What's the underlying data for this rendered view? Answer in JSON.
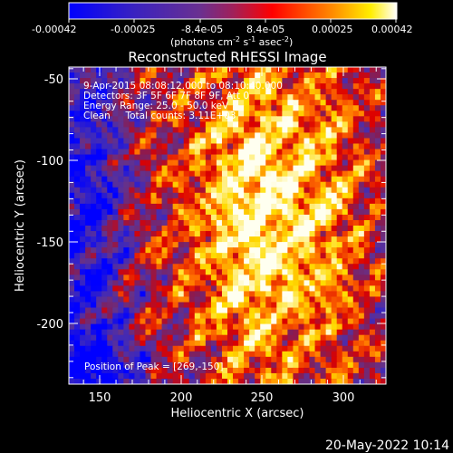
{
  "colorbar": {
    "ticks": [
      "-0.00042",
      "-0.00025",
      "-8.4e-05",
      "8.4e-05",
      "0.00025",
      "0.00042"
    ],
    "units_prefix": "(photons cm",
    "units_exp1": "-2",
    "units_mid": " s",
    "units_exp2": "-1",
    "units_asec": " asec",
    "units_exp3": "-2",
    "units_suffix": ")"
  },
  "title": "Reconstructed RHESSI Image",
  "info": {
    "line1": "9-Apr-2015 08:08:12.000 to 08:10:40.000",
    "line2": "Detectors: 3F 5F 6F 7F 8F 9F, Att 0",
    "line3": "Energy Range: 25.0 - 50.0 keV",
    "line4": "Clean     Total counts: 3.11E+03",
    "peak": "Position of Peak = [269,-150]"
  },
  "axes": {
    "xlabel": "Heliocentric X (arcsec)",
    "ylabel": "Heliocentric Y (arcsec)",
    "xticks": [
      "150",
      "200",
      "250",
      "300"
    ],
    "yticks": [
      "-50",
      "-100",
      "-150",
      "-200"
    ],
    "xrange": [
      131,
      326
    ],
    "yrange": [
      -234,
      -39
    ]
  },
  "timestamp": "20-May-2022 10:14",
  "colors": {
    "low": "#0000ff",
    "mid": "#5a2a78",
    "high": "#ff0000",
    "top": "#ffffff"
  }
}
